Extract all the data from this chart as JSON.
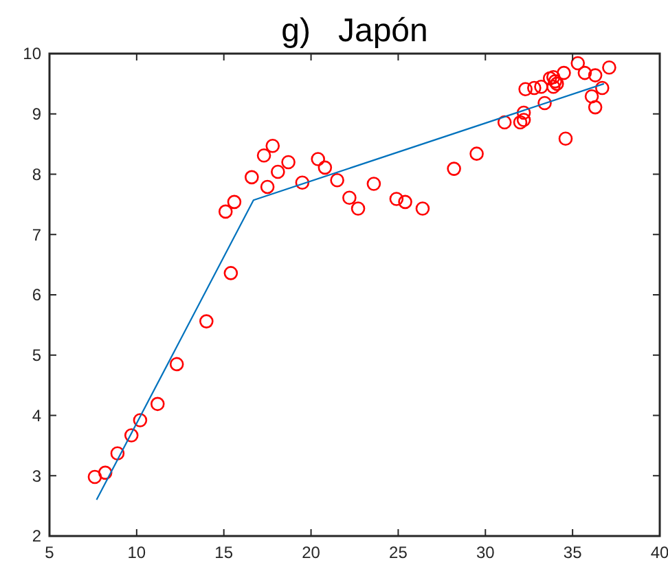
{
  "chart_data": {
    "type": "scatter",
    "title": "g)   Japón",
    "xlim": [
      5,
      40
    ],
    "ylim": [
      2,
      10
    ],
    "xticks": [
      5,
      10,
      15,
      20,
      25,
      30,
      35,
      40
    ],
    "yticks": [
      2,
      3,
      4,
      5,
      6,
      7,
      8,
      9,
      10
    ],
    "grid": false,
    "series": [
      {
        "color": "#ff0000",
        "marker": "circle",
        "x": [
          7.6,
          8.2,
          8.9,
          9.7,
          10.2,
          11.2,
          12.3,
          14.0,
          15.4,
          15.1,
          15.6,
          16.6,
          17.3,
          17.8,
          17.5,
          18.1,
          18.7,
          19.5,
          20.4,
          20.8,
          21.5,
          22.2,
          22.7,
          23.6,
          24.9,
          25.4,
          26.4,
          28.2,
          29.5,
          31.1,
          32.0,
          32.2,
          32.2,
          32.3,
          32.8,
          33.2,
          33.4,
          33.7,
          33.9,
          34.0,
          33.9,
          34.1,
          34.5,
          34.6,
          35.3,
          35.7,
          36.3,
          37.1,
          36.1,
          36.3,
          36.7
        ],
        "values": [
          2.98,
          3.05,
          3.37,
          3.67,
          3.92,
          4.19,
          4.85,
          5.56,
          6.36,
          7.38,
          7.54,
          7.95,
          8.31,
          8.47,
          7.79,
          8.04,
          8.2,
          7.86,
          8.25,
          8.11,
          7.9,
          7.61,
          7.43,
          7.84,
          7.59,
          7.54,
          7.43,
          8.09,
          8.34,
          8.86,
          8.86,
          8.9,
          9.02,
          9.41,
          9.43,
          9.45,
          9.18,
          9.59,
          9.61,
          9.54,
          9.45,
          9.5,
          9.68,
          8.59,
          9.84,
          9.68,
          9.64,
          9.77,
          9.29,
          9.11,
          9.43
        ]
      },
      {
        "type": "line",
        "color": "#0072bd",
        "marker": "none",
        "line_style": "solid",
        "x": [
          7.7,
          16.7,
          36.8
        ],
        "values": [
          2.6,
          7.57,
          9.5
        ]
      }
    ]
  }
}
